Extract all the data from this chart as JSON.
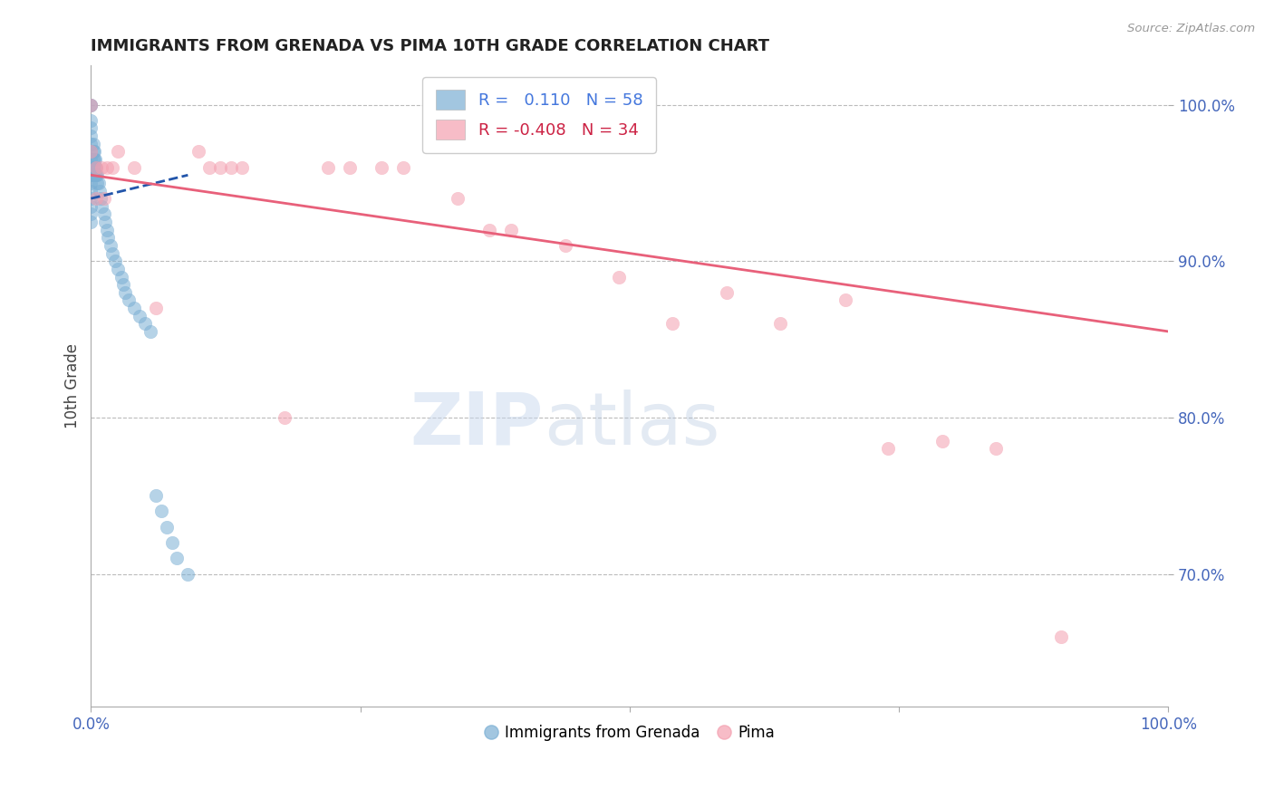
{
  "title": "IMMIGRANTS FROM GRENADA VS PIMA 10TH GRADE CORRELATION CHART",
  "source": "Source: ZipAtlas.com",
  "ylabel": "10th Grade",
  "xlim": [
    0.0,
    1.0
  ],
  "ylim": [
    0.615,
    1.025
  ],
  "ytick_values": [
    0.7,
    0.8,
    0.9,
    1.0
  ],
  "r_blue": 0.11,
  "n_blue": 58,
  "r_pink": -0.408,
  "n_pink": 34,
  "legend_label_blue": "Immigrants from Grenada",
  "legend_label_pink": "Pima",
  "blue_color": "#7BAFD4",
  "pink_color": "#F4A0B0",
  "blue_line_color": "#2255AA",
  "pink_line_color": "#E8607A",
  "watermark_zip": "ZIP",
  "watermark_atlas": "atlas",
  "grid_color": "#BBBBBB",
  "title_color": "#222222",
  "axis_label_color": "#444444",
  "tick_label_color": "#4466BB",
  "legend_r_color_blue": "#4477DD",
  "legend_r_color_pink": "#CC2244",
  "blue_scatter_x": [
    0.0,
    0.0,
    0.0,
    0.0,
    0.0,
    0.0,
    0.0,
    0.0,
    0.0,
    0.0,
    0.0,
    0.0,
    0.0,
    0.0,
    0.0,
    0.0,
    0.002,
    0.002,
    0.002,
    0.002,
    0.002,
    0.003,
    0.003,
    0.003,
    0.003,
    0.004,
    0.004,
    0.004,
    0.005,
    0.005,
    0.006,
    0.006,
    0.007,
    0.008,
    0.009,
    0.01,
    0.012,
    0.013,
    0.015,
    0.016,
    0.018,
    0.02,
    0.022,
    0.025,
    0.028,
    0.03,
    0.032,
    0.035,
    0.04,
    0.045,
    0.05,
    0.055,
    0.06,
    0.065,
    0.07,
    0.075,
    0.08,
    0.09
  ],
  "blue_scatter_y": [
    1.0,
    1.0,
    0.99,
    0.985,
    0.98,
    0.975,
    0.97,
    0.965,
    0.96,
    0.955,
    0.95,
    0.945,
    0.94,
    0.935,
    0.93,
    0.925,
    0.975,
    0.97,
    0.965,
    0.96,
    0.955,
    0.97,
    0.965,
    0.96,
    0.955,
    0.965,
    0.96,
    0.955,
    0.96,
    0.955,
    0.955,
    0.95,
    0.95,
    0.945,
    0.94,
    0.935,
    0.93,
    0.925,
    0.92,
    0.915,
    0.91,
    0.905,
    0.9,
    0.895,
    0.89,
    0.885,
    0.88,
    0.875,
    0.87,
    0.865,
    0.86,
    0.855,
    0.75,
    0.74,
    0.73,
    0.72,
    0.71,
    0.7
  ],
  "pink_scatter_x": [
    0.0,
    0.0,
    0.005,
    0.005,
    0.01,
    0.012,
    0.015,
    0.02,
    0.025,
    0.04,
    0.06,
    0.1,
    0.11,
    0.12,
    0.13,
    0.14,
    0.18,
    0.22,
    0.24,
    0.27,
    0.29,
    0.34,
    0.37,
    0.39,
    0.44,
    0.49,
    0.54,
    0.59,
    0.64,
    0.7,
    0.74,
    0.79,
    0.84,
    0.9
  ],
  "pink_scatter_y": [
    1.0,
    0.97,
    0.96,
    0.94,
    0.96,
    0.94,
    0.96,
    0.96,
    0.97,
    0.96,
    0.87,
    0.97,
    0.96,
    0.96,
    0.96,
    0.96,
    0.8,
    0.96,
    0.96,
    0.96,
    0.96,
    0.94,
    0.92,
    0.92,
    0.91,
    0.89,
    0.86,
    0.88,
    0.86,
    0.875,
    0.78,
    0.785,
    0.78,
    0.66
  ],
  "blue_line_x0": 0.0,
  "blue_line_x1": 0.09,
  "pink_line_x0": 0.0,
  "pink_line_x1": 1.0,
  "blue_line_y0": 0.94,
  "blue_line_y1": 0.955,
  "pink_line_y0": 0.955,
  "pink_line_y1": 0.855
}
